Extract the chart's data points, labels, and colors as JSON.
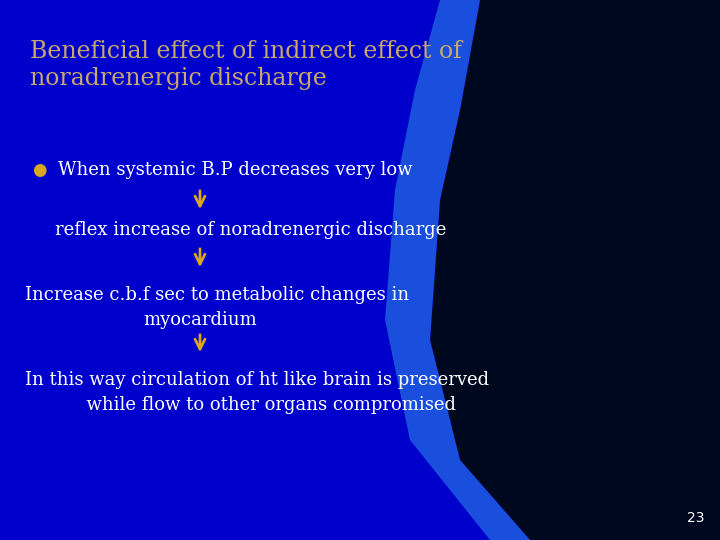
{
  "title_line1": "Beneficial effect of indirect effect of",
  "title_line2": "noradrenergic discharge",
  "title_color": "#C8A86B",
  "bullet_text": "When systemic B.P decreases very low",
  "bullet_color": "#FFFFFF",
  "bullet_marker_color": "#DAA520",
  "item1": "reflex increase of noradrenergic discharge",
  "item2_line1": "Increase c.b.f sec to metabolic changes in",
  "item2_line2": "myocardium",
  "item3_line1": "In this way circulation of ht like brain is preserved",
  "item3_line2": "  while flow to other organs compromised",
  "text_color": "#FFFFFF",
  "arrow_color": "#DAA520",
  "page_number": "23",
  "page_number_color": "#FFFFFF",
  "bg_main": "#0000CC",
  "bg_dark": "#000820",
  "bg_blue_strip": "#1a4fdd",
  "title_fontsize": 17,
  "body_fontsize": 13
}
